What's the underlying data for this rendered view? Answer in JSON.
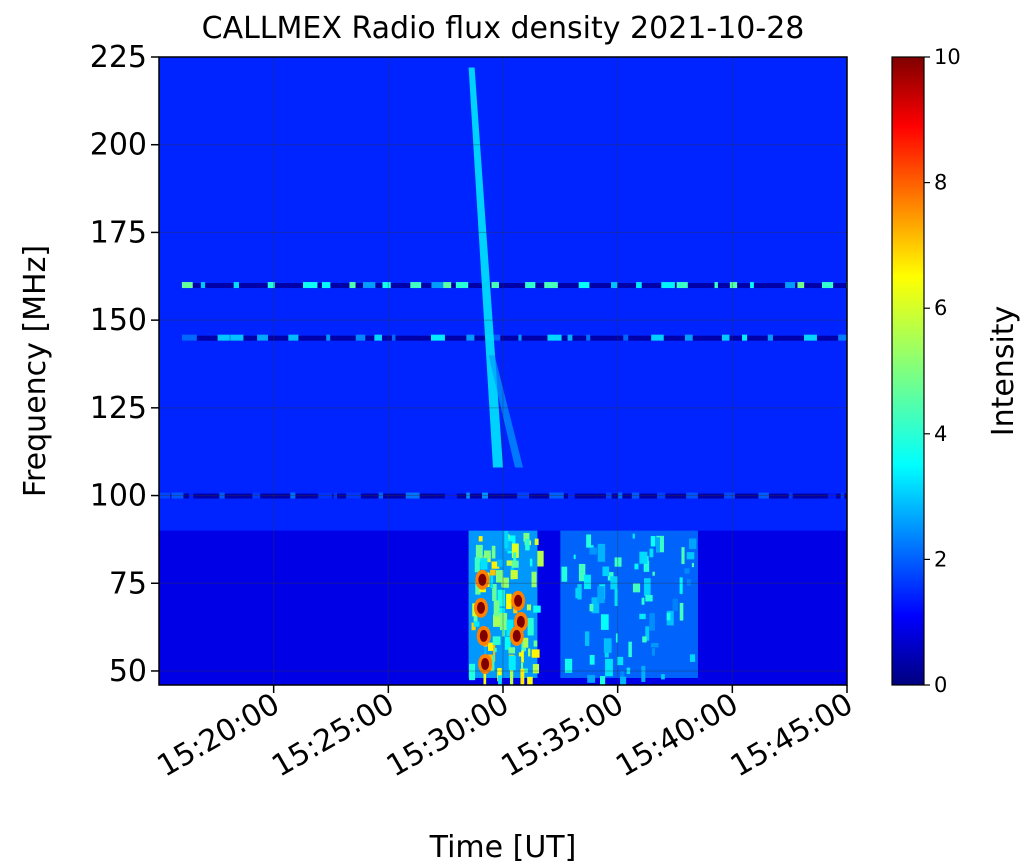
{
  "chart_data": {
    "type": "heatmap",
    "title": "CALLMEX Radio flux density 2021-10-28",
    "xlabel": "Time [UT]",
    "ylabel": "Frequency [MHz]",
    "x_ticks": [
      "15:20:00",
      "15:25:00",
      "15:30:00",
      "15:35:00",
      "15:40:00",
      "15:45:00"
    ],
    "x_range": [
      "15:15:00",
      "15:45:00"
    ],
    "y_ticks": [
      50,
      75,
      100,
      125,
      150,
      175,
      200,
      225
    ],
    "ylim": [
      46,
      225
    ],
    "colorbar": {
      "label": "Intensity",
      "ticks": [
        0,
        2,
        4,
        6,
        8,
        10
      ],
      "range": [
        0,
        10
      ],
      "colormap": "jet"
    },
    "grid": true,
    "features": [
      {
        "type": "band",
        "freq_mhz": 160,
        "t_start": "15:16:00",
        "t_end": "15:45:00",
        "intensity": 4.5
      },
      {
        "type": "band",
        "freq_mhz": 145,
        "t_start": "15:16:00",
        "t_end": "15:45:00",
        "intensity": 3.5
      },
      {
        "type": "band",
        "freq_mhz": 100,
        "t_start": "15:15:00",
        "t_end": "15:45:00",
        "intensity": 2.5
      },
      {
        "type": "type_iii_burst",
        "t_start": "15:28:30",
        "t_end": "15:30:00",
        "f_high_mhz": 222,
        "f_low_mhz": 108,
        "intensity": 3.5
      },
      {
        "type": "type_ii_burst",
        "t_start": "15:28:30",
        "t_end": "15:31:30",
        "f_high_mhz": 90,
        "f_low_mhz": 48,
        "peak_intensity": 10
      },
      {
        "type": "emission_patch",
        "t_start": "15:32:30",
        "t_end": "15:38:30",
        "f_high_mhz": 90,
        "f_low_mhz": 48,
        "intensity": 3.5
      }
    ]
  }
}
